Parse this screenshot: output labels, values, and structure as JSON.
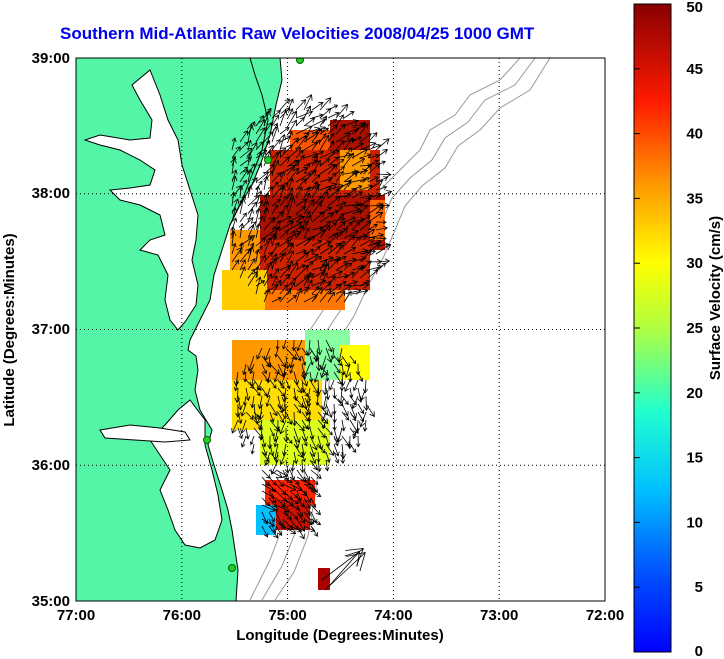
{
  "title": "Southern Mid-Atlantic Raw Velocities 2008/04/25 1000 GMT",
  "map": {
    "x_ticks": [
      "77:00",
      "76:00",
      "75:00",
      "74:00",
      "73:00",
      "72:00"
    ],
    "y_ticks": [
      "39:00",
      "38:00",
      "37:00",
      "36:00",
      "35:00"
    ],
    "xlabel": "Longitude (Degrees:Minutes)",
    "ylabel": "Latitude (Degrees:Minutes)",
    "lon_range": [
      -77,
      -72
    ],
    "lat_range": [
      35,
      39
    ],
    "grid": "dotted",
    "colors": {
      "land": "#55f5a8",
      "coastline": "#000000",
      "bathymetry": "#999999",
      "station": "#22cc22"
    }
  },
  "colorbar": {
    "label": "Surface Velocity (cm/s)",
    "ticks": [
      "0",
      "5",
      "10",
      "15",
      "20",
      "25",
      "30",
      "35",
      "40",
      "45",
      "50"
    ],
    "range": [
      0,
      50
    ],
    "colormap": "jet"
  }
}
